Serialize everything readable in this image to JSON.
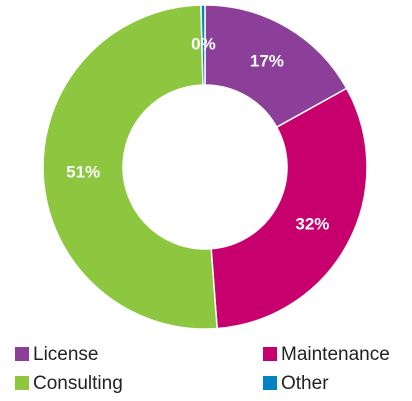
{
  "chart_data": {
    "type": "pie",
    "categories": [
      "License",
      "Maintenance",
      "Consulting",
      "Other"
    ],
    "values": [
      17,
      32,
      51,
      0.4
    ],
    "value_labels": [
      "17%",
      "32%",
      "51%",
      "0%"
    ],
    "colors": [
      "#8b3f98",
      "#c8006e",
      "#8dc63f",
      "#0083c0"
    ],
    "legend": "bottom"
  }
}
